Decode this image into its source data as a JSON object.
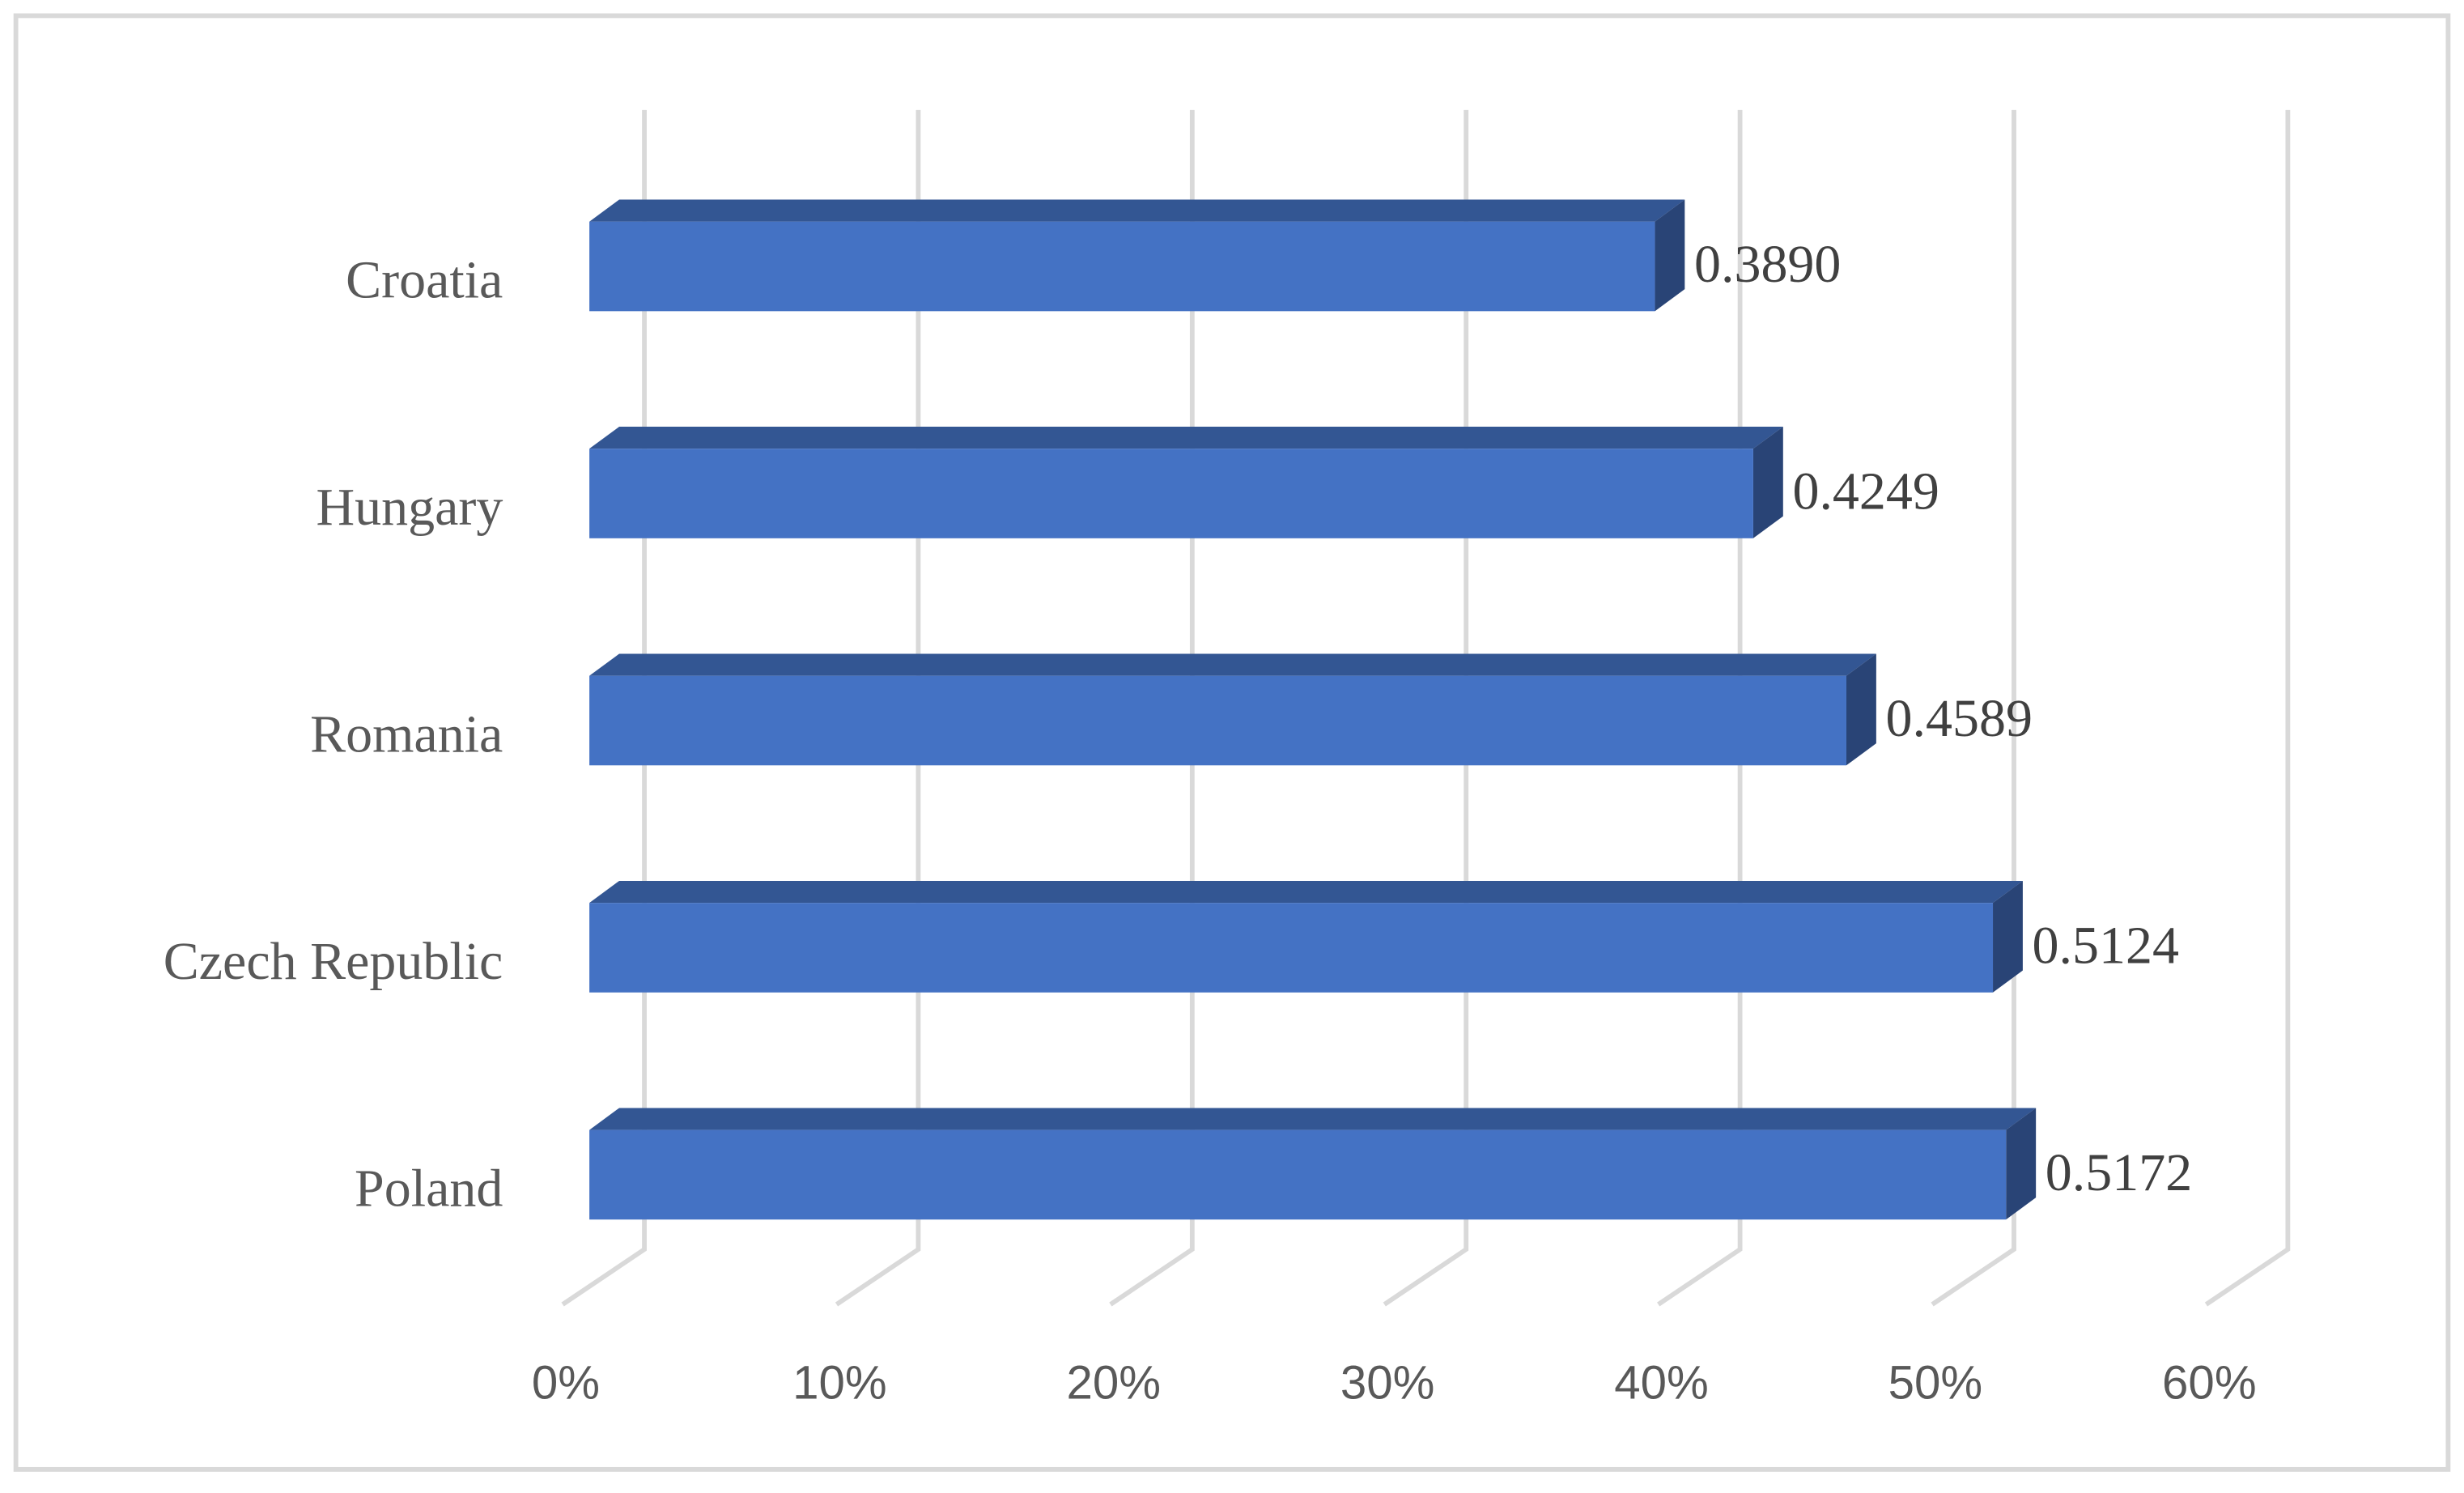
{
  "chart_data": {
    "type": "bar",
    "orientation": "horizontal",
    "categories": [
      "Croatia",
      "Hungary",
      "Romania",
      "Czech Republic",
      "Poland"
    ],
    "values": [
      0.389,
      0.4249,
      0.4589,
      0.5124,
      0.5172
    ],
    "value_labels": [
      "0.3890",
      "0.4249",
      "0.4589",
      "0.5124",
      "0.5172"
    ],
    "color": "#4472c4",
    "xlim": [
      0,
      0.6
    ],
    "xticks": [
      {
        "value": 0,
        "label": "0%"
      },
      {
        "value": 0.1,
        "label": "10%"
      },
      {
        "value": 0.2,
        "label": "20%"
      },
      {
        "value": 0.3,
        "label": "30%"
      },
      {
        "value": 0.4,
        "label": "40%"
      },
      {
        "value": 0.5,
        "label": "50%"
      },
      {
        "value": 0.6,
        "label": "60%"
      }
    ],
    "grid": true
  }
}
